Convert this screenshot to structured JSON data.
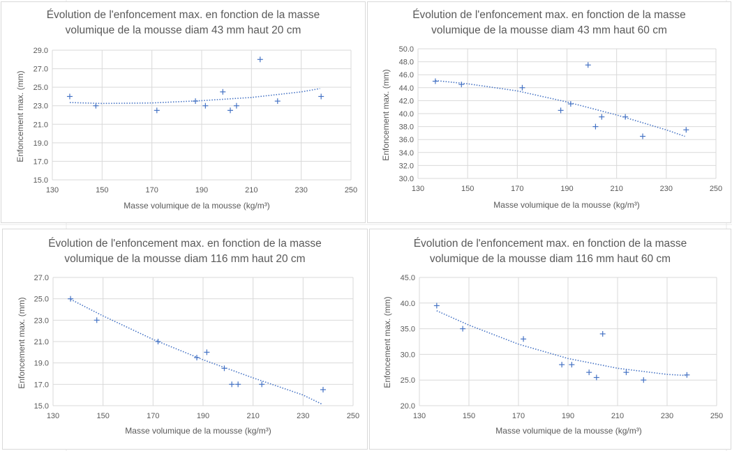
{
  "colors": {
    "marker": "#4472c4",
    "trend": "#4472c4",
    "grid": "#d9d9d9",
    "text": "#595959",
    "border": "#d9d9d9"
  },
  "chart_data": [
    {
      "type": "scatter",
      "title_line1": "Évolution de l'enfoncement max. en fonction de la masse",
      "title_line2": "volumique de la mousse diam 43 mm haut 20 cm",
      "xlabel": "Masse volumique de la mousse (kg/m³)",
      "ylabel": "Enfoncement max.  (mm)",
      "xlim": [
        130,
        250
      ],
      "ylim": [
        15,
        29
      ],
      "xticks": [
        "130",
        "150",
        "170",
        "190",
        "210",
        "230",
        "250"
      ],
      "yticks": [
        "15.0",
        "17.0",
        "19.0",
        "21.0",
        "23.0",
        "25.0",
        "27.0",
        "29.0"
      ],
      "x": [
        137,
        147.5,
        172,
        187.5,
        191.5,
        198.5,
        201.5,
        204,
        213.5,
        220.5,
        238
      ],
      "y": [
        24,
        23,
        22.5,
        23.5,
        23,
        24.5,
        22.5,
        23,
        28,
        23.5,
        24
      ],
      "trend": {
        "type": "polynomial",
        "x": [
          137,
          150,
          170,
          190,
          210,
          230,
          237.5
        ],
        "y": [
          23.35,
          23.25,
          23.3,
          23.55,
          23.9,
          24.5,
          24.85
        ]
      }
    },
    {
      "type": "scatter",
      "title_line1": "Évolution de l'enfoncement max. en fonction de la masse",
      "title_line2": "volumique de la mousse diam 43 mm haut 60 cm",
      "xlabel": "Masse volumique de la mousse (kg/m³)",
      "ylabel": "Enfoncement max.  (mm)",
      "xlim": [
        130,
        250
      ],
      "ylim": [
        30,
        50
      ],
      "xticks": [
        "130",
        "150",
        "170",
        "190",
        "210",
        "230",
        "250"
      ],
      "yticks": [
        "30.0",
        "32.0",
        "34.0",
        "36.0",
        "38.0",
        "40.0",
        "42.0",
        "44.0",
        "46.0",
        "48.0",
        "50.0"
      ],
      "x": [
        137,
        147.5,
        172,
        187.5,
        191.5,
        198.5,
        201.5,
        204,
        213.5,
        220.5,
        238
      ],
      "y": [
        45,
        44.5,
        44,
        40.5,
        41.5,
        47.5,
        38,
        39.5,
        39.5,
        36.5,
        37.5
      ],
      "trend": {
        "type": "polynomial",
        "x": [
          137,
          150,
          170,
          190,
          210,
          230,
          237.5
        ],
        "y": [
          45.1,
          44.6,
          43.5,
          41.8,
          39.8,
          37.5,
          36.5
        ]
      }
    },
    {
      "type": "scatter",
      "title_line1": "Évolution de l'enfoncement max. en fonction de la masse",
      "title_line2": "volumique de la mousse diam 116 mm haut 20 cm",
      "xlabel": "Masse volumique de la mousse (kg/m³)",
      "ylabel": "Enfoncement max.  (mm)",
      "xlim": [
        130,
        250
      ],
      "ylim": [
        15,
        27
      ],
      "xticks": [
        "130",
        "150",
        "170",
        "190",
        "210",
        "230",
        "250"
      ],
      "yticks": [
        "15.0",
        "17.0",
        "19.0",
        "21.0",
        "23.0",
        "25.0",
        "27.0"
      ],
      "x": [
        137,
        147.5,
        172,
        187.5,
        191.5,
        198.5,
        201.5,
        204,
        213.5,
        238
      ],
      "y": [
        25,
        23,
        21,
        19.5,
        20,
        18.5,
        17,
        17,
        17,
        16.5
      ],
      "trend": {
        "type": "polynomial",
        "x": [
          137,
          150,
          170,
          190,
          210,
          230,
          237.5
        ],
        "y": [
          24.95,
          23.4,
          21.2,
          19.3,
          17.6,
          16.0,
          15.15
        ]
      }
    },
    {
      "type": "scatter",
      "title_line1": "Évolution de l'enfoncement max. en fonction de la masse",
      "title_line2": "volumique de la mousse diam 116 mm haut 60 cm",
      "xlabel": "Masse volumique de la mousse (kg/m³)",
      "ylabel": "Enfoncement max.  (mm)",
      "xlim": [
        130,
        250
      ],
      "ylim": [
        20,
        45
      ],
      "xticks": [
        "130",
        "150",
        "170",
        "190",
        "210",
        "230",
        "250"
      ],
      "yticks": [
        "20.0",
        "25.0",
        "30.0",
        "35.0",
        "40.0",
        "45.0"
      ],
      "x": [
        137,
        147.5,
        172,
        187.5,
        191.5,
        198.5,
        201.5,
        204,
        213.5,
        220.5,
        238
      ],
      "y": [
        39.5,
        35,
        33,
        28,
        28,
        26.5,
        25.5,
        34,
        26.5,
        25,
        26
      ],
      "trend": {
        "type": "polynomial",
        "x": [
          137,
          150,
          170,
          190,
          210,
          230,
          237.5
        ],
        "y": [
          38.5,
          35.7,
          32.0,
          29.2,
          27.3,
          26.1,
          25.9
        ]
      }
    }
  ]
}
